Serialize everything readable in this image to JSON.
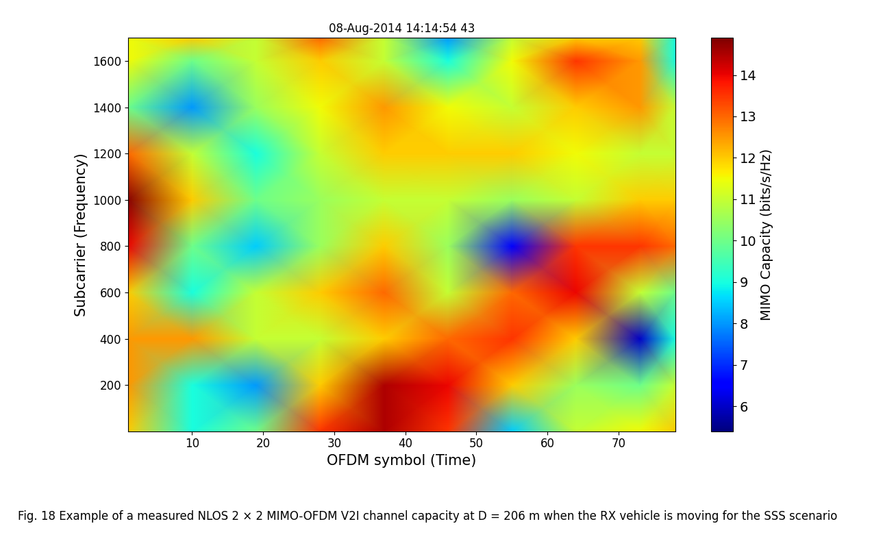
{
  "chart_data": {
    "type": "heatmap",
    "title": "08-Aug-2014 14:14:54 43",
    "x_label": "OFDM symbol (Time)",
    "y_label": "Subcarrier (Frequency)",
    "colorbar_label": "MIMO Capacity (bits/s/Hz)",
    "caption": "Fig. 18 Example of a measured NLOS 2 × 2 MIMO-OFDM V2I channel capacity at D = 206 m when the RX vehicle is moving for the SSS scenario",
    "x": [
      1,
      10,
      19,
      28,
      37,
      46,
      55,
      64,
      73,
      78
    ],
    "y": [
      1,
      200,
      400,
      600,
      800,
      1000,
      1200,
      1400,
      1600,
      1700
    ],
    "cells": [
      [
        12,
        9,
        10,
        13.5,
        14.5,
        13.5,
        8.5,
        11,
        11.5,
        12
      ],
      [
        12.5,
        9,
        8,
        12,
        14.5,
        14,
        12,
        10.5,
        10,
        11
      ],
      [
        12.5,
        12.5,
        11,
        11,
        12,
        13,
        13.5,
        12,
        6,
        9
      ],
      [
        12,
        9,
        11,
        12,
        13,
        11,
        13,
        14,
        11,
        10
      ],
      [
        14,
        10,
        8.5,
        10.5,
        12,
        10.5,
        6.5,
        13.5,
        13.5,
        13
      ],
      [
        14.8,
        12,
        10,
        10.5,
        11,
        11,
        10.5,
        11,
        12,
        12
      ],
      [
        13,
        11,
        9,
        11,
        12,
        12,
        12,
        11.5,
        11,
        11
      ],
      [
        10,
        8,
        10.5,
        11.5,
        12.5,
        11.5,
        11,
        12,
        12.5,
        11
      ],
      [
        11.5,
        10,
        11,
        12,
        11,
        9,
        11.5,
        13.5,
        12.5,
        9
      ],
      [
        11.5,
        12,
        11,
        13,
        11,
        8,
        11,
        12,
        12,
        9
      ]
    ],
    "xlim": [
      1,
      78
    ],
    "ylim": [
      1,
      1700
    ],
    "xticks": [
      10,
      20,
      30,
      40,
      50,
      60,
      70
    ],
    "yticks": [
      200,
      400,
      600,
      800,
      1000,
      1200,
      1400,
      1600
    ],
    "color_range": [
      5.4,
      14.9
    ],
    "color_ticks": [
      6,
      7,
      8,
      9,
      10,
      11,
      12,
      13,
      14
    ]
  }
}
